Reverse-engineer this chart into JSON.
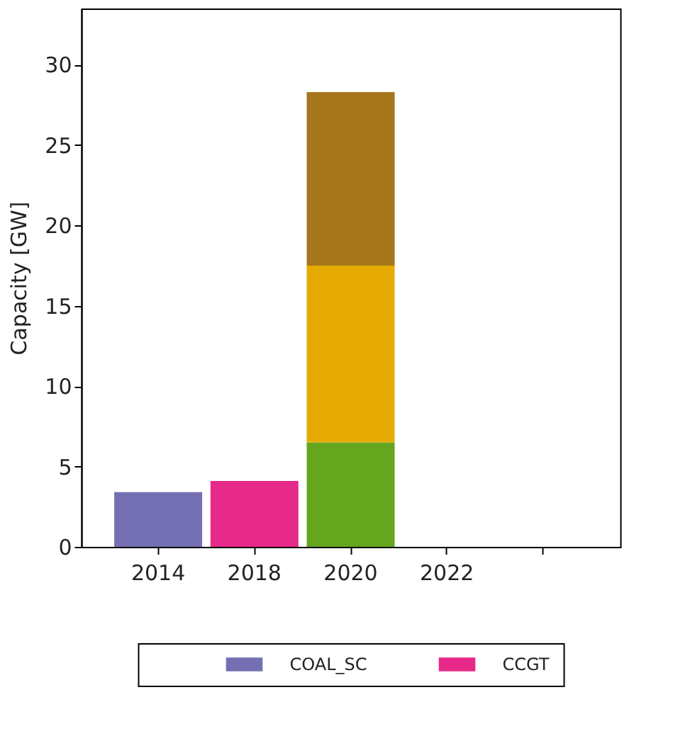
{
  "chart_data": {
    "type": "bar",
    "stacked": true,
    "ylabel": "Capacity  [GW]",
    "categories": [
      "2014",
      "2018",
      "2020",
      "2022",
      null
    ],
    "series": [
      {
        "name": "COAL_SC",
        "color": "#7570b3",
        "values": [
          3.4,
          null,
          null,
          null,
          null
        ]
      },
      {
        "name": "CCGT",
        "color": "#e7298a",
        "values": [
          null,
          4.1,
          null,
          null,
          null
        ]
      },
      {
        "color": "#66a61e",
        "values": [
          null,
          null,
          6.5,
          null,
          null
        ]
      },
      {
        "color": "#e6ab02",
        "values": [
          null,
          null,
          11.0,
          null,
          null
        ]
      },
      {
        "color": "#a6761d",
        "values": [
          null,
          null,
          10.8,
          null,
          null
        ]
      }
    ],
    "ylim": [
      0,
      33.5
    ],
    "yticks": [
      0,
      5,
      10,
      15,
      20,
      25,
      30
    ],
    "grid": false,
    "legend": "bottom"
  }
}
